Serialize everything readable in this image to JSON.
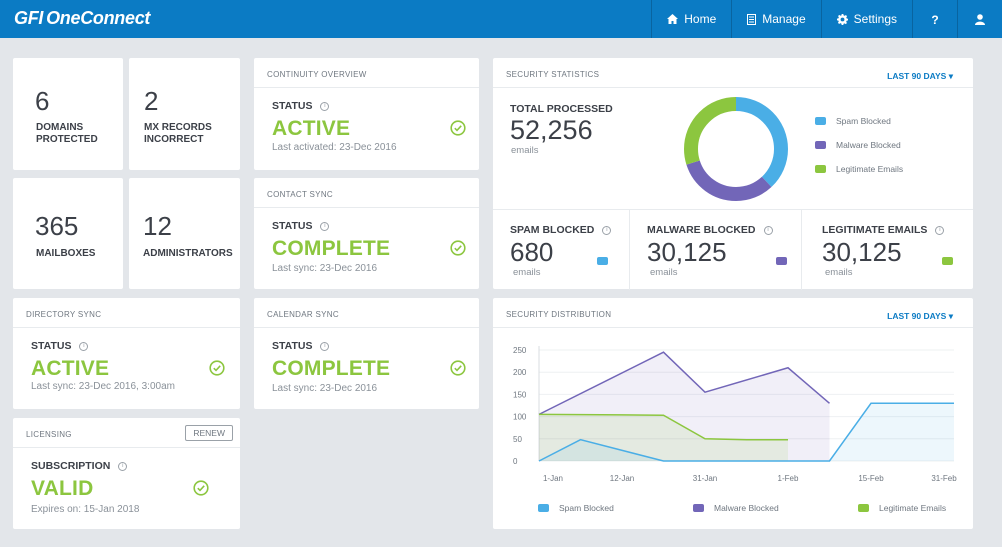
{
  "header": {
    "brand_prefix": "GFI",
    "brand_name": "OneConnect",
    "nav": [
      {
        "label": "Home",
        "icon": "home-icon"
      },
      {
        "label": "Manage",
        "icon": "document-icon"
      },
      {
        "label": "Settings",
        "icon": "gear-icon"
      },
      {
        "label": "",
        "icon": "help-icon"
      },
      {
        "label": "",
        "icon": "user-icon"
      }
    ]
  },
  "tiles": {
    "domains": {
      "value": "6",
      "label1": "DOMAINS",
      "label2": "PROTECTED"
    },
    "mx": {
      "value": "2",
      "label1": "MX RECORDS",
      "label2": "INCORRECT"
    },
    "mailboxes": {
      "value": "365",
      "label": "MAILBOXES"
    },
    "admins": {
      "value": "12",
      "label": "ADMINISTRATORS"
    }
  },
  "continuity": {
    "title": "CONTINUITY OVERVIEW",
    "status_label": "STATUS",
    "status": "ACTIVE",
    "sub": "Last activated: 23-Dec 2016"
  },
  "contact_sync": {
    "title": "CONTACT SYNC",
    "status_label": "STATUS",
    "status": "COMPLETE",
    "sub": "Last sync: 23-Dec 2016"
  },
  "directory_sync": {
    "title": "DIRECTORY SYNC",
    "status_label": "STATUS",
    "status": "ACTIVE",
    "sub": "Last sync: 23-Dec 2016, 3:00am"
  },
  "calendar_sync": {
    "title": "CALENDAR SYNC",
    "status_label": "STATUS",
    "status": "COMPLETE",
    "sub": "Last sync: 23-Dec 2016"
  },
  "licensing": {
    "title": "LICENSING",
    "renew": "RENEW",
    "status_label": "SUBSCRIPTION",
    "status": "VALID",
    "sub": "Expires on: 15-Jan 2018"
  },
  "security_stats": {
    "title": "SECURITY STATISTICS",
    "period": "LAST 90 DAYS",
    "total_label": "TOTAL PROCESSED",
    "total_value": "52,256",
    "total_unit": "emails",
    "donut": [
      {
        "name": "Spam Blocked",
        "value": 38,
        "color": "#4aaee6"
      },
      {
        "name": "Malware Blocked",
        "value": 32,
        "color": "#7266b8"
      },
      {
        "name": "Legitimate Emails",
        "value": 30,
        "color": "#8cc63f"
      }
    ],
    "legend": [
      "Spam Blocked",
      "Malware Blocked",
      "Legitimate Emails"
    ],
    "spam": {
      "label": "SPAM BLOCKED",
      "value": "680",
      "unit": "emails"
    },
    "malware": {
      "label": "MALWARE BLOCKED",
      "value": "30,125",
      "unit": "emails"
    },
    "legit": {
      "label": "LEGITIMATE EMAILS",
      "value": "30,125",
      "unit": "emails"
    }
  },
  "security_dist": {
    "title": "SECURITY DISTRIBUTION",
    "period": "LAST 90 DAYS",
    "legend": [
      "Spam Blocked",
      "Malware Blocked",
      "Legitimate Emails"
    ]
  },
  "colors": {
    "accent": "#0b7bc4",
    "ok": "#8cc63f",
    "spam": "#4aaee6",
    "malware": "#7266b8",
    "legit": "#8cc63f"
  },
  "chart_data": {
    "type": "area",
    "title": "",
    "xlabel": "",
    "ylabel": "",
    "ylim": [
      0,
      250
    ],
    "yticks": [
      0,
      50,
      100,
      150,
      200,
      250
    ],
    "xtick_labels": [
      "1-Jan",
      "12-Jan",
      "31-Jan",
      "1-Feb",
      "15-Feb",
      "31-Feb"
    ],
    "series": [
      {
        "name": "Spam Blocked",
        "color": "#4aaee6",
        "points": [
          [
            0,
            0
          ],
          [
            1,
            48
          ],
          [
            3,
            0
          ],
          [
            5,
            0
          ],
          [
            7,
            0
          ],
          [
            8,
            130
          ],
          [
            9,
            130
          ],
          [
            10,
            130
          ]
        ]
      },
      {
        "name": "Malware Blocked",
        "color": "#7266b8",
        "points": [
          [
            0,
            105
          ],
          [
            3,
            245
          ],
          [
            4,
            155
          ],
          [
            6,
            210
          ],
          [
            7,
            130
          ]
        ]
      },
      {
        "name": "Legitimate Emails",
        "color": "#8cc63f",
        "points": [
          [
            0,
            105
          ],
          [
            2,
            104
          ],
          [
            3,
            103
          ],
          [
            4,
            50
          ],
          [
            5,
            48
          ],
          [
            6,
            48
          ]
        ]
      }
    ]
  }
}
